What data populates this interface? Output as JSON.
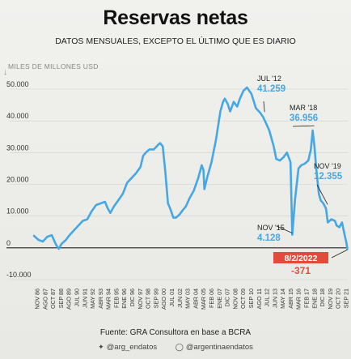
{
  "title": "Reservas netas",
  "subtitle": "DATOS MENSUALES, EXCEPTO EL ÚLTIMO QUE ES DIARIO",
  "source": "Fuente: GRA Consultora en base a BCRA",
  "social": [
    {
      "icon": "twitter-bird-icon",
      "handle": "@arg_endatos"
    },
    {
      "icon": "instagram-icon",
      "handle": "@argentinaendatos"
    }
  ],
  "colors": {
    "line": "#45a7e3",
    "label": "#45a7e3",
    "last": "#e04b3c",
    "zero_line": "#222222",
    "grid": "#cfcfcb"
  },
  "chart_data": {
    "type": "line",
    "ylabel": "MILES DE MILLONES USD",
    "ylim": [
      -10000,
      50000
    ],
    "yticks": [
      50000,
      40000,
      30000,
      20000,
      10000,
      0,
      -10000
    ],
    "ytick_labels": [
      "50.000",
      "40.000",
      "30.000",
      "20.000",
      "10.000",
      "0",
      "-10.000"
    ],
    "grid": true,
    "xtick_labels": [
      "NOV 86",
      "AGO 87",
      "OCT 87",
      "SEP 88",
      "AGO 89",
      "JUL 90",
      "JUN 91",
      "MAY 92",
      "ABR 93",
      "MAR 94",
      "FEB 95",
      "ENE 96",
      "DIC 96",
      "NOV 97",
      "OCT 98",
      "SEP 99",
      "AGO 00",
      "JUL 01",
      "JUN 02",
      "MAY 03",
      "ABR 04",
      "MAR 05",
      "FEB 06",
      "ENE 07",
      "DIC 07",
      "NOV 08",
      "OCT 09",
      "SEP 10",
      "AGO 11",
      "JUL 12",
      "JUN 13",
      "MAY 14",
      "ABR 15",
      "MAR 16",
      "FEB 17",
      "ENE 18",
      "DIC 18",
      "NOV 19",
      "OCT 20",
      "SEP 21"
    ],
    "series": [
      {
        "values": [
          [
            1986.8,
            3800
          ],
          [
            1987.3,
            2500
          ],
          [
            1987.8,
            2000
          ],
          [
            1988.3,
            3500
          ],
          [
            1988.8,
            4000
          ],
          [
            1989.3,
            900
          ],
          [
            1989.6,
            -300
          ],
          [
            1989.9,
            1200
          ],
          [
            1990.4,
            2500
          ],
          [
            1990.8,
            4000
          ],
          [
            1991.3,
            5500
          ],
          [
            1991.8,
            7000
          ],
          [
            1992.3,
            8500
          ],
          [
            1992.8,
            9000
          ],
          [
            1993.3,
            11500
          ],
          [
            1993.8,
            13500
          ],
          [
            1994.3,
            14000
          ],
          [
            1994.8,
            14500
          ],
          [
            1995.1,
            12500
          ],
          [
            1995.4,
            11000
          ],
          [
            1995.8,
            13000
          ],
          [
            1996.3,
            15000
          ],
          [
            1996.8,
            17000
          ],
          [
            1997.3,
            20500
          ],
          [
            1997.8,
            22000
          ],
          [
            1998.3,
            23500
          ],
          [
            1998.8,
            25500
          ],
          [
            1999.1,
            29000
          ],
          [
            1999.4,
            30000
          ],
          [
            1999.8,
            31000
          ],
          [
            2000.3,
            31000
          ],
          [
            2000.8,
            32500
          ],
          [
            2001.0,
            33000
          ],
          [
            2001.3,
            32000
          ],
          [
            2001.6,
            24000
          ],
          [
            2001.9,
            14000
          ],
          [
            2002.2,
            12000
          ],
          [
            2002.5,
            9500
          ],
          [
            2002.8,
            9500
          ],
          [
            2003.2,
            10500
          ],
          [
            2003.6,
            12000
          ],
          [
            2003.9,
            13000
          ],
          [
            2004.3,
            15500
          ],
          [
            2004.8,
            18000
          ],
          [
            2005.3,
            22000
          ],
          [
            2005.7,
            26000
          ],
          [
            2005.9,
            24500
          ],
          [
            2006.0,
            18500
          ],
          [
            2006.3,
            22000
          ],
          [
            2006.8,
            27000
          ],
          [
            2007.3,
            34000
          ],
          [
            2007.8,
            43000
          ],
          [
            2008.1,
            46000
          ],
          [
            2008.3,
            47000
          ],
          [
            2008.6,
            45500
          ],
          [
            2008.9,
            43000
          ],
          [
            2009.3,
            46000
          ],
          [
            2009.7,
            44500
          ],
          [
            2010.0,
            47000
          ],
          [
            2010.4,
            49500
          ],
          [
            2010.8,
            50500
          ],
          [
            2011.3,
            48500
          ],
          [
            2011.8,
            44000
          ],
          [
            2012.3,
            42500
          ],
          [
            2012.6,
            41259
          ],
          [
            2012.9,
            39500
          ],
          [
            2013.3,
            37000
          ],
          [
            2013.8,
            32000
          ],
          [
            2014.1,
            28000
          ],
          [
            2014.5,
            27500
          ],
          [
            2014.9,
            28500
          ],
          [
            2015.3,
            30000
          ],
          [
            2015.7,
            27000
          ],
          [
            2015.9,
            4128
          ],
          [
            2016.2,
            15000
          ],
          [
            2016.6,
            25000
          ],
          [
            2016.9,
            26000
          ],
          [
            2017.3,
            26500
          ],
          [
            2017.7,
            27500
          ],
          [
            2018.0,
            31000
          ],
          [
            2018.2,
            36956
          ],
          [
            2018.4,
            32000
          ],
          [
            2018.6,
            25000
          ],
          [
            2018.9,
            17000
          ],
          [
            2019.1,
            15000
          ],
          [
            2019.4,
            14000
          ],
          [
            2019.7,
            12355
          ],
          [
            2019.9,
            8000
          ],
          [
            2020.3,
            9000
          ],
          [
            2020.7,
            8500
          ],
          [
            2020.9,
            7000
          ],
          [
            2021.2,
            6500
          ],
          [
            2021.5,
            8000
          ],
          [
            2021.8,
            4000
          ],
          [
            2022.0,
            1500
          ],
          [
            2022.1,
            -371
          ]
        ]
      }
    ],
    "annotations": [
      {
        "date": "JUL '12",
        "value": "41.259",
        "x": 2012.6,
        "y": 41259
      },
      {
        "date": "MAR '18",
        "value": "36.956",
        "x": 2018.2,
        "y": 36956
      },
      {
        "date": "NOV '19",
        "value": "12.355",
        "x": 2019.7,
        "y": 12355
      },
      {
        "date": "NOV '15",
        "value": "4.128",
        "x": 2015.9,
        "y": 4128
      },
      {
        "date": "8/2/2022",
        "value": "-371",
        "x": 2022.1,
        "y": -371,
        "style": "last"
      }
    ]
  }
}
